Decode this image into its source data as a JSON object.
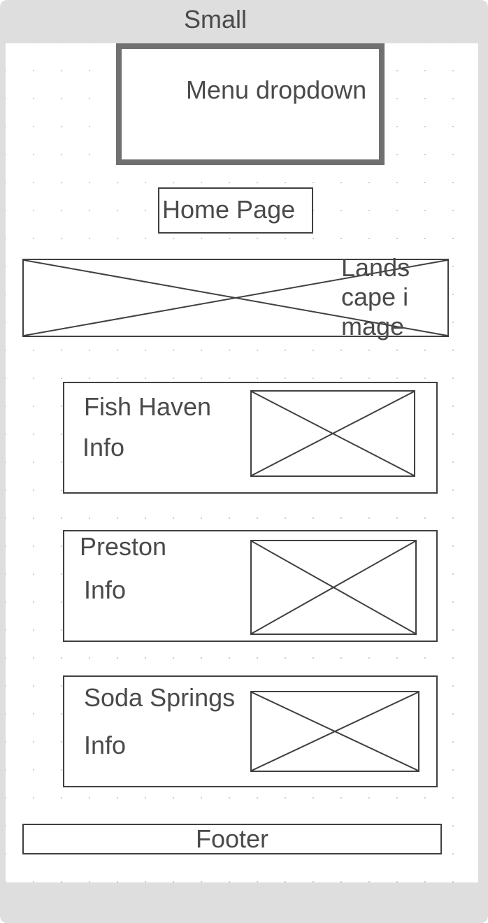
{
  "frame": {
    "title": "Small"
  },
  "menu": {
    "label": "Menu dropdown"
  },
  "home": {
    "label": "Home Page"
  },
  "landscape": {
    "label": "Landscape image"
  },
  "cards": [
    {
      "title": "Fish Haven",
      "info": "Info"
    },
    {
      "title": "Preston",
      "info": "Info"
    },
    {
      "title": "Soda Springs",
      "info": "Info"
    }
  ],
  "footer": {
    "label": "Footer"
  },
  "colors": {
    "frame": "#dedede",
    "canvas": "#ffffff",
    "stroke": "#404040",
    "menu_border": "#707070",
    "text": "#4a4a4a"
  }
}
